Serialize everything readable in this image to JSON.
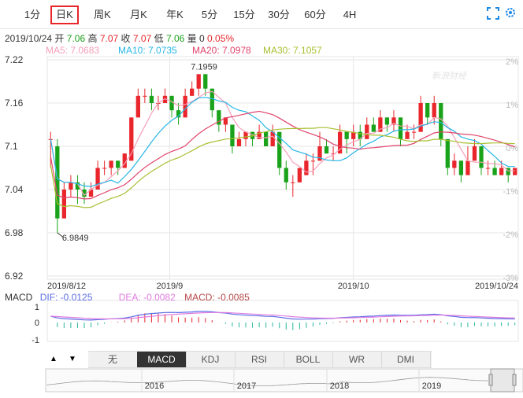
{
  "tabs": [
    {
      "label": "1分",
      "active": false
    },
    {
      "label": "日K",
      "active": true
    },
    {
      "label": "周K",
      "active": false
    },
    {
      "label": "月K",
      "active": false
    },
    {
      "label": "年K",
      "active": false
    },
    {
      "label": "5分",
      "active": false
    },
    {
      "label": "15分",
      "active": false
    },
    {
      "label": "30分",
      "active": false
    },
    {
      "label": "60分",
      "active": false
    },
    {
      "label": "4H",
      "active": false
    }
  ],
  "info": {
    "date": "2019/10/24",
    "open_label": "开",
    "open": "7.06",
    "high_label": "高",
    "high": "7.07",
    "close_label": "收",
    "close": "7.07",
    "low_label": "低",
    "low": "7.06",
    "vol_label": "量",
    "vol": "0",
    "change": "0.05%"
  },
  "ma": {
    "ma5": "MA5: 7.0683",
    "ma10": "MA10: 7.0735",
    "ma20": "MA20: 7.0978",
    "ma30": "MA30: 7.1057"
  },
  "watermark": "新浪财经",
  "colors": {
    "up": "#e8262b",
    "down": "#1aa31a",
    "ma5": "#f59fb9",
    "ma10": "#27b6e6",
    "ma20": "#e0446c",
    "ma30": "#a8bf30",
    "dif": "#5b6ee6",
    "dea": "#e07be0",
    "macd_label": "#b84a4a",
    "grid": "#e6e6e6",
    "nav_line": "#999999"
  },
  "chart_data": {
    "type": "candlestick",
    "y_ticks": [
      "7.22",
      "7.16",
      "7.1",
      "7.04",
      "6.98",
      "6.92"
    ],
    "ylim": [
      6.92,
      7.22
    ],
    "pct_ticks": [
      "2%",
      "1%",
      "0%",
      "-1%",
      "-2%",
      "-3%"
    ],
    "x_labels": [
      "2019/8/12",
      "2019/9",
      "2019/10",
      "2019/10/24"
    ],
    "max_label": "7.1959",
    "min_label": "6.9849",
    "candles": [
      [
        7.11,
        7.11,
        7.12,
        7.07
      ],
      [
        7.1,
        7.0,
        7.11,
        6.98
      ],
      [
        7.0,
        7.04,
        7.05,
        7.0
      ],
      [
        7.04,
        7.05,
        7.06,
        7.03
      ],
      [
        7.05,
        7.04,
        7.06,
        7.02
      ],
      [
        7.04,
        7.03,
        7.05,
        7.02
      ],
      [
        7.03,
        7.04,
        7.05,
        7.03
      ],
      [
        7.04,
        7.07,
        7.08,
        7.04
      ],
      [
        7.07,
        7.07,
        7.08,
        7.06
      ],
      [
        7.07,
        7.08,
        7.08,
        7.06
      ],
      [
        7.08,
        7.07,
        7.08,
        7.06
      ],
      [
        7.07,
        7.09,
        7.09,
        7.07
      ],
      [
        7.08,
        7.14,
        7.14,
        7.08
      ],
      [
        7.14,
        7.17,
        7.18,
        7.14
      ],
      [
        7.17,
        7.17,
        7.18,
        7.16
      ],
      [
        7.17,
        7.16,
        7.18,
        7.15
      ],
      [
        7.16,
        7.16,
        7.17,
        7.15
      ],
      [
        7.16,
        7.17,
        7.18,
        7.16
      ],
      [
        7.17,
        7.15,
        7.17,
        7.14
      ],
      [
        7.15,
        7.14,
        7.16,
        7.13
      ],
      [
        7.14,
        7.17,
        7.18,
        7.14
      ],
      [
        7.17,
        7.18,
        7.19,
        7.17
      ],
      [
        7.18,
        7.2,
        7.2,
        7.17
      ],
      [
        7.2,
        7.18,
        7.2,
        7.17
      ],
      [
        7.18,
        7.15,
        7.18,
        7.14
      ],
      [
        7.15,
        7.13,
        7.15,
        7.12
      ],
      [
        7.13,
        7.14,
        7.14,
        7.12
      ],
      [
        7.13,
        7.1,
        7.13,
        7.09
      ],
      [
        7.1,
        7.11,
        7.12,
        7.1
      ],
      [
        7.11,
        7.12,
        7.12,
        7.1
      ],
      [
        7.12,
        7.11,
        7.12,
        7.1
      ],
      [
        7.11,
        7.12,
        7.13,
        7.11
      ],
      [
        7.12,
        7.1,
        7.12,
        7.1
      ],
      [
        7.1,
        7.12,
        7.13,
        7.1
      ],
      [
        7.12,
        7.07,
        7.12,
        7.06
      ],
      [
        7.07,
        7.05,
        7.08,
        7.04
      ],
      [
        7.05,
        7.05,
        7.06,
        7.03
      ],
      [
        7.05,
        7.07,
        7.07,
        7.05
      ],
      [
        7.06,
        7.08,
        7.09,
        7.06
      ],
      [
        7.08,
        7.08,
        7.09,
        7.06
      ],
      [
        7.08,
        7.1,
        7.12,
        7.08
      ],
      [
        7.1,
        7.09,
        7.11,
        7.09
      ],
      [
        7.09,
        7.09,
        7.1,
        7.08
      ],
      [
        7.09,
        7.12,
        7.13,
        7.09
      ],
      [
        7.12,
        7.11,
        7.12,
        7.09
      ],
      [
        7.11,
        7.12,
        7.13,
        7.1
      ],
      [
        7.12,
        7.11,
        7.13,
        7.1
      ],
      [
        7.11,
        7.13,
        7.14,
        7.11
      ],
      [
        7.13,
        7.12,
        7.14,
        7.12
      ],
      [
        7.12,
        7.14,
        7.15,
        7.12
      ],
      [
        7.14,
        7.13,
        7.14,
        7.12
      ],
      [
        7.13,
        7.14,
        7.15,
        7.12
      ],
      [
        7.14,
        7.11,
        7.14,
        7.1
      ],
      [
        7.11,
        7.12,
        7.13,
        7.11
      ],
      [
        7.12,
        7.12,
        7.13,
        7.11
      ],
      [
        7.12,
        7.16,
        7.17,
        7.12
      ],
      [
        7.16,
        7.14,
        7.16,
        7.13
      ],
      [
        7.14,
        7.16,
        7.17,
        7.13
      ],
      [
        7.16,
        7.11,
        7.16,
        7.1
      ],
      [
        7.11,
        7.07,
        7.11,
        7.06
      ],
      [
        7.07,
        7.08,
        7.09,
        7.06
      ],
      [
        7.08,
        7.06,
        7.08,
        7.05
      ],
      [
        7.06,
        7.08,
        7.1,
        7.06
      ],
      [
        7.08,
        7.1,
        7.11,
        7.08
      ],
      [
        7.1,
        7.07,
        7.1,
        7.06
      ],
      [
        7.07,
        7.07,
        7.08,
        7.06
      ],
      [
        7.07,
        7.06,
        7.08,
        7.06
      ],
      [
        7.06,
        7.07,
        7.08,
        7.06
      ],
      [
        7.07,
        7.06,
        7.07,
        7.05
      ],
      [
        7.06,
        7.07,
        7.07,
        7.06
      ]
    ],
    "macd": {
      "dif_label": "DIF: -0.0125",
      "dea_label": "DEA: -0.0082",
      "macd_label": "MACD: -0.0085",
      "y_ticks": [
        "1",
        "0",
        "-1"
      ]
    },
    "navigator": {
      "year_labels": [
        "2016",
        "2017",
        "2018",
        "2019"
      ]
    }
  },
  "buttons": {
    "up_arrow": "▲",
    "down_arrow": "▼"
  },
  "indicators": [
    {
      "label": "无",
      "active": false
    },
    {
      "label": "MACD",
      "active": true
    },
    {
      "label": "KDJ",
      "active": false
    },
    {
      "label": "RSI",
      "active": false
    },
    {
      "label": "BOLL",
      "active": false
    },
    {
      "label": "WR",
      "active": false
    },
    {
      "label": "DMI",
      "active": false
    }
  ]
}
